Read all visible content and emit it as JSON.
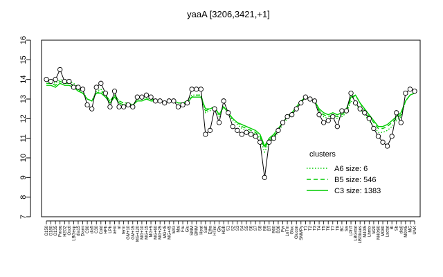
{
  "chart_data": {
    "type": "line",
    "title": "yaaA [3206,3421,+1]",
    "xlabel": "",
    "ylabel": "",
    "ylim": [
      7,
      16
    ],
    "yticks": [
      7,
      8,
      9,
      10,
      11,
      12,
      13,
      14,
      15,
      16
    ],
    "grid": false,
    "legend_position": "right",
    "x_tick_labels": [
      "G150",
      "G180",
      "G135",
      "Paraq",
      "H2O2",
      "Oxctl",
      "LBGexp",
      "dia15",
      "Diami",
      "C90",
      "dia5",
      "C30",
      "Cold",
      "HPh",
      "LPh",
      "aero",
      "nt",
      "ferm",
      "GM+10",
      "GM+15",
      "MG+120",
      "MG+10",
      "MG+15",
      "MG+5",
      "MG+60",
      "MG+25",
      "MG+t5",
      "MG+45",
      "M/G",
      "Mal",
      "Fru",
      "Glu",
      "SMM",
      "BMM",
      "Heat",
      "Salt",
      "Etha",
      "HTim",
      "Gly",
      "HGh",
      "S1",
      "S2",
      "S3",
      "S4",
      "S5",
      "S6",
      "S7",
      "S8",
      "B8",
      "BT",
      "B60",
      "B36",
      "Pyr",
      "LoTm",
      "Gluc",
      "Glucon",
      "SMMPy",
      "T1",
      "T2",
      "T3",
      "T4",
      "T5",
      "T6",
      "T7",
      "T8",
      "BC",
      "Sw",
      "LPhT",
      "LBGstat",
      "LBGtrans",
      "M40t5",
      "Lhmix",
      "M20",
      "M40t90",
      "M080",
      "Lactat",
      "Bl",
      "Sb",
      "dia0",
      "M0t45",
      "MG",
      "UNK"
    ],
    "series": [
      {
        "name": "",
        "point_style": "open-circle",
        "color": "#000000",
        "values": [
          14.0,
          13.9,
          14.0,
          14.5,
          13.9,
          13.9,
          13.6,
          13.6,
          13.5,
          12.7,
          12.5,
          13.6,
          13.8,
          13.3,
          12.6,
          13.4,
          12.6,
          12.6,
          12.7,
          12.6,
          13.1,
          13.1,
          13.2,
          13.1,
          12.9,
          12.9,
          12.8,
          12.9,
          12.9,
          12.6,
          12.7,
          12.8,
          13.5,
          13.5,
          13.5,
          11.2,
          11.4,
          12.5,
          11.8,
          12.9,
          12.3,
          11.6,
          11.4,
          11.2,
          11.3,
          11.2,
          11.1,
          10.8,
          9.0,
          10.8,
          11.0,
          11.4,
          11.8,
          12.1,
          12.2,
          12.5,
          12.8,
          13.1,
          13.0,
          12.9,
          12.2,
          11.8,
          11.9,
          12.1,
          11.6,
          12.4,
          12.4,
          13.3,
          12.8,
          12.5,
          12.3,
          12.0,
          11.5,
          11.1,
          10.8,
          10.6,
          11.1,
          12.3,
          11.8,
          13.3,
          13.5,
          13.4
        ]
      },
      {
        "name": "A6 size: 6",
        "line_style": "dotted",
        "color": "#00cc00",
        "values": [
          14.0,
          13.9,
          13.8,
          14.0,
          13.9,
          13.9,
          13.8,
          13.6,
          13.4,
          13.0,
          12.9,
          13.4,
          13.5,
          13.2,
          12.9,
          13.2,
          12.9,
          12.8,
          12.8,
          12.7,
          13.0,
          13.0,
          13.1,
          13.0,
          12.9,
          12.9,
          12.8,
          12.9,
          12.9,
          12.8,
          12.8,
          12.9,
          13.2,
          13.2,
          13.2,
          12.3,
          12.4,
          12.6,
          12.1,
          12.6,
          12.3,
          11.9,
          11.7,
          11.5,
          11.4,
          11.3,
          11.2,
          11.0,
          10.3,
          10.8,
          11.0,
          11.3,
          11.7,
          12.0,
          12.2,
          12.5,
          12.8,
          13.1,
          13.0,
          12.9,
          12.4,
          12.1,
          12.0,
          12.2,
          12.0,
          12.1,
          12.3,
          12.9,
          12.7,
          12.5,
          12.2,
          11.9,
          11.6,
          11.3,
          11.3,
          11.4,
          11.6,
          11.9,
          12.1,
          12.9,
          13.2,
          13.3
        ]
      },
      {
        "name": "B5 size: 546",
        "line_style": "dashed",
        "color": "#00cc00",
        "values": [
          13.8,
          13.8,
          13.7,
          13.9,
          13.8,
          13.8,
          13.7,
          13.5,
          13.3,
          13.0,
          12.9,
          13.3,
          13.4,
          13.2,
          12.9,
          13.2,
          12.9,
          12.8,
          12.8,
          12.7,
          12.9,
          12.9,
          13.0,
          13.0,
          12.9,
          12.9,
          12.8,
          12.9,
          12.9,
          12.8,
          12.8,
          12.9,
          13.1,
          13.2,
          13.2,
          12.4,
          12.5,
          12.6,
          12.2,
          12.6,
          12.3,
          12.0,
          11.8,
          11.6,
          11.5,
          11.4,
          11.3,
          11.1,
          10.5,
          10.9,
          11.1,
          11.4,
          11.8,
          12.1,
          12.3,
          12.6,
          12.9,
          13.1,
          13.0,
          12.9,
          12.4,
          12.2,
          12.1,
          12.2,
          12.1,
          12.2,
          12.4,
          13.0,
          13.2,
          12.8,
          12.4,
          12.1,
          11.8,
          11.5,
          11.5,
          11.6,
          11.8,
          12.0,
          12.2,
          12.9,
          13.2,
          13.3
        ]
      },
      {
        "name": "C3 size: 1383",
        "line_style": "solid",
        "color": "#00cc00",
        "values": [
          13.7,
          13.7,
          13.6,
          13.8,
          13.7,
          13.7,
          13.6,
          13.4,
          13.3,
          13.0,
          12.9,
          13.3,
          13.3,
          13.1,
          12.8,
          13.1,
          12.8,
          12.7,
          12.7,
          12.7,
          12.9,
          12.9,
          13.0,
          12.9,
          12.9,
          12.9,
          12.8,
          12.9,
          12.9,
          12.8,
          12.8,
          12.8,
          13.1,
          13.1,
          13.1,
          12.5,
          12.5,
          12.6,
          12.2,
          12.6,
          12.3,
          12.0,
          11.8,
          11.7,
          11.6,
          11.5,
          11.4,
          11.2,
          10.6,
          11.0,
          11.2,
          11.5,
          11.8,
          12.1,
          12.3,
          12.6,
          12.9,
          13.1,
          13.0,
          12.9,
          12.5,
          12.3,
          12.2,
          12.3,
          12.2,
          12.3,
          12.5,
          13.1,
          13.2,
          12.8,
          12.5,
          12.2,
          11.9,
          11.6,
          11.6,
          11.7,
          11.9,
          12.1,
          12.3,
          12.9,
          13.2,
          13.3
        ]
      }
    ]
  }
}
